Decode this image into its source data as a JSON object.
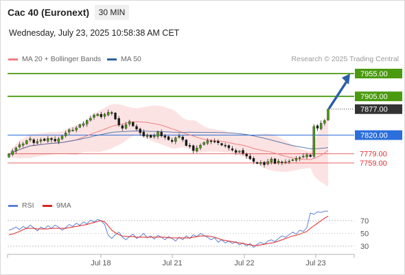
{
  "header": {
    "instrument": "Cac 40 (Euronext)",
    "timeframe": "30 MIN",
    "datetime": "Wednesday, July 23, 2025 10:58:38 AM CET"
  },
  "legend": {
    "ma20_label": "MA 20 + Bollinger Bands",
    "ma20_color": "#f08080",
    "ma50_label": "MA 50",
    "ma50_color": "#2f5f9e"
  },
  "credit": "Research © 2025 Trading Central",
  "rsi_legend": {
    "rsi_label": "RSI",
    "rsi_color": "#5b7fd4",
    "ma_label": "9MA",
    "ma_color": "#e02020"
  },
  "chart_data": {
    "type": "candlestick",
    "x_tick_labels": [
      "Jul 18",
      "Jul 21",
      "Jul 22",
      "Jul 23"
    ],
    "y_range": [
      7740,
      7965
    ],
    "levels": [
      {
        "label": "7955.00",
        "value": 7955,
        "color": "#4a9a0f",
        "kind": "resistance"
      },
      {
        "label": "7905.00",
        "value": 7905,
        "color": "#4a9a0f",
        "kind": "resistance"
      },
      {
        "label": "7877.00",
        "value": 7877,
        "color": "#333333",
        "kind": "last-price"
      },
      {
        "label": "7820.00",
        "value": 7820,
        "color": "#2a6fdb",
        "kind": "pivot"
      },
      {
        "label": "7779.00",
        "value": 7779,
        "color": "#e03030",
        "kind": "support"
      },
      {
        "label": "7759.00",
        "value": 7759,
        "color": "#e03030",
        "kind": "support"
      }
    ],
    "closes": [
      7778,
      7785,
      7792,
      7799,
      7801,
      7808,
      7812,
      7803,
      7806,
      7810,
      7808,
      7813,
      7810,
      7807,
      7812,
      7818,
      7825,
      7832,
      7831,
      7836,
      7843,
      7845,
      7852,
      7857,
      7864,
      7866,
      7860,
      7866,
      7870,
      7868,
      7855,
      7842,
      7835,
      7843,
      7850,
      7840,
      7833,
      7825,
      7818,
      7820,
      7815,
      7819,
      7827,
      7818,
      7815,
      7810,
      7806,
      7814,
      7818,
      7810,
      7797,
      7795,
      7786,
      7792,
      7798,
      7804,
      7808,
      7806,
      7805,
      7803,
      7798,
      7796,
      7792,
      7787,
      7782,
      7785,
      7780,
      7774,
      7768,
      7762,
      7758,
      7760,
      7755,
      7762,
      7768,
      7758,
      7763,
      7760,
      7761,
      7763,
      7766,
      7769,
      7771,
      7774,
      7777,
      7773,
      7839,
      7835,
      7846,
      7852,
      7877
    ],
    "forecast_arrow": {
      "from": 7877,
      "to": 7955
    },
    "rsi": {
      "y_ticks": [
        70,
        50,
        30
      ],
      "overbought": 70,
      "oversold": 30,
      "rsi_values": [
        55,
        57,
        60,
        56,
        61,
        58,
        63,
        59,
        54,
        60,
        57,
        62,
        58,
        63,
        60,
        55,
        59,
        64,
        61,
        66,
        63,
        68,
        65,
        71,
        68,
        72,
        70,
        64,
        47,
        42,
        48,
        52,
        44,
        40,
        45,
        49,
        42,
        45,
        50,
        43,
        46,
        41,
        47,
        44,
        40,
        45,
        42,
        38,
        44,
        40,
        46,
        42,
        48,
        45,
        50,
        47,
        44,
        40,
        43,
        36,
        40,
        35,
        38,
        34,
        37,
        32,
        35,
        30,
        34,
        28,
        33,
        36,
        33,
        38,
        40,
        37,
        42,
        46,
        44,
        48,
        52,
        49,
        55,
        53,
        59,
        82,
        80,
        84,
        83,
        85,
        85
      ],
      "ma_values": [
        48,
        49,
        51,
        53,
        56,
        58,
        58,
        58,
        57,
        57,
        57,
        57,
        58,
        58,
        58,
        58,
        58,
        59,
        60,
        61,
        62,
        63,
        64,
        66,
        67,
        69,
        70,
        68,
        62,
        55,
        51,
        48,
        46,
        45,
        45,
        45,
        44,
        44,
        44,
        44,
        44,
        44,
        44,
        44,
        44,
        43,
        43,
        43,
        43,
        43,
        43,
        43,
        44,
        45,
        46,
        46,
        46,
        45,
        44,
        42,
        40,
        39,
        38,
        37,
        36,
        35,
        34,
        33,
        32,
        31,
        31,
        32,
        33,
        34,
        35,
        36,
        38,
        40,
        42,
        44,
        46,
        47,
        49,
        51,
        53,
        58,
        62,
        66,
        70,
        74,
        77
      ]
    }
  }
}
